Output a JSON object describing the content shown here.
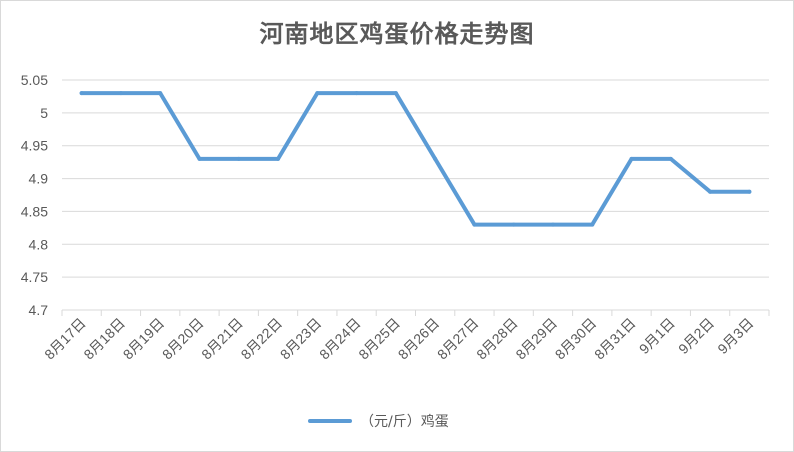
{
  "chart_data": {
    "type": "line",
    "title": "河南地区鸡蛋价格走势图",
    "xlabel": "",
    "ylabel": "",
    "categories": [
      "8月17日",
      "8月18日",
      "8月19日",
      "8月20日",
      "8月21日",
      "8月22日",
      "8月23日",
      "8月24日",
      "8月25日",
      "8月26日",
      "8月27日",
      "8月28日",
      "8月29日",
      "8月30日",
      "8月31日",
      "9月1日",
      "9月2日",
      "9月3日"
    ],
    "ylim": [
      4.7,
      5.05
    ],
    "yticks": [
      "4.7",
      "4.75",
      "4.8",
      "4.85",
      "4.9",
      "4.95",
      "5",
      "5.05"
    ],
    "grid": true,
    "legend_position": "bottom",
    "series": [
      {
        "name": "（元/斤）鸡蛋",
        "color": "#5b9bd5",
        "values": [
          5.03,
          5.03,
          5.03,
          4.93,
          4.93,
          4.93,
          5.03,
          5.03,
          5.03,
          4.93,
          4.83,
          4.83,
          4.83,
          4.83,
          4.93,
          4.93,
          4.88,
          4.88
        ]
      }
    ]
  }
}
